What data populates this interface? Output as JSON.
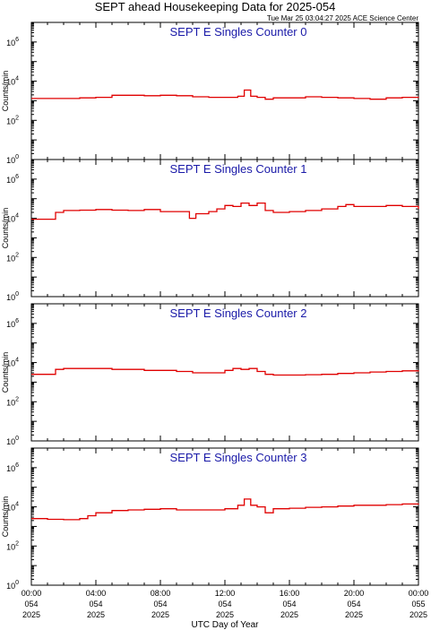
{
  "page": {
    "title": "SEPT ahead Housekeeping Data for 2025-054",
    "timestamp": "Tue Mar 25 03:04:27 2025 ACE Science Center",
    "xlabel": "UTC Day of Year"
  },
  "colors": {
    "trace": "#e00000",
    "panel_title": "#1a1aa8",
    "axes": "#000000",
    "background": "#ffffff"
  },
  "chart_data": [
    {
      "type": "line",
      "title": "SEPT E Singles Counter 0",
      "ylabel": "Counts/min",
      "yscale": "log",
      "ylim": [
        1,
        10000000
      ],
      "ytick_labels": [
        "10^0",
        "10^2",
        "10^4",
        "10^6"
      ],
      "xlim": [
        0,
        24
      ],
      "xtick_labels": [
        [
          "00:00",
          "054",
          "2025"
        ],
        [
          "04:00",
          "054",
          "2025"
        ],
        [
          "08:00",
          "054",
          "2025"
        ],
        [
          "12:00",
          "054",
          "2025"
        ],
        [
          "16:00",
          "054",
          "2025"
        ],
        [
          "20:00",
          "054",
          "2025"
        ],
        [
          "00:00",
          "055",
          "2025"
        ]
      ],
      "series": [
        {
          "x": [
            0.0,
            1.0,
            2.0,
            3.0,
            4.0,
            5.0,
            6.0,
            7.0,
            8.0,
            9.0,
            10.0,
            11.0,
            12.0,
            12.8,
            13.2,
            13.6,
            14.0,
            14.5,
            15.0,
            16.0,
            17.0,
            18.0,
            19.0,
            20.0,
            21.0,
            22.0,
            23.0,
            24.0
          ],
          "y": [
            1300,
            1300,
            1300,
            1400,
            1500,
            1900,
            1900,
            1800,
            1900,
            1800,
            1600,
            1500,
            1500,
            1700,
            3500,
            1700,
            1500,
            1200,
            1400,
            1400,
            1600,
            1500,
            1400,
            1300,
            1200,
            1400,
            1500,
            1600
          ]
        }
      ]
    },
    {
      "type": "line",
      "title": "SEPT E Singles Counter 1",
      "ylabel": "Counts/min",
      "yscale": "log",
      "ylim": [
        1,
        10000000
      ],
      "ytick_labels": [
        "10^0",
        "10^2",
        "10^4",
        "10^6"
      ],
      "xlim": [
        0,
        24
      ],
      "xtick_labels": [
        [
          "00:00",
          "054",
          "2025"
        ],
        [
          "04:00",
          "054",
          "2025"
        ],
        [
          "08:00",
          "054",
          "2025"
        ],
        [
          "12:00",
          "054",
          "2025"
        ],
        [
          "16:00",
          "054",
          "2025"
        ],
        [
          "20:00",
          "054",
          "2025"
        ],
        [
          "00:00",
          "055",
          "2025"
        ]
      ],
      "series": [
        {
          "x": [
            0.0,
            0.5,
            1.0,
            1.5,
            2.0,
            3.0,
            4.0,
            5.0,
            6.0,
            7.0,
            8.0,
            9.0,
            9.8,
            10.2,
            11.0,
            11.5,
            12.0,
            12.5,
            13.0,
            13.5,
            14.0,
            14.5,
            15.0,
            16.0,
            17.0,
            18.0,
            19.0,
            19.5,
            20.0,
            21.0,
            22.0,
            23.0,
            24.0
          ],
          "y": [
            9000,
            9000,
            9000,
            20000,
            25000,
            26000,
            28000,
            26000,
            25000,
            28000,
            22000,
            22000,
            10000,
            17000,
            22000,
            30000,
            45000,
            40000,
            60000,
            45000,
            60000,
            25000,
            20000,
            22000,
            25000,
            30000,
            40000,
            50000,
            40000,
            40000,
            45000,
            40000,
            30000
          ]
        }
      ]
    },
    {
      "type": "line",
      "title": "SEPT E Singles Counter 2",
      "ylabel": "Counts/min",
      "yscale": "log",
      "ylim": [
        1,
        10000000
      ],
      "ytick_labels": [
        "10^0",
        "10^2",
        "10^4",
        "10^6"
      ],
      "xlim": [
        0,
        24
      ],
      "xtick_labels": [
        [
          "00:00",
          "054",
          "2025"
        ],
        [
          "04:00",
          "054",
          "2025"
        ],
        [
          "08:00",
          "054",
          "2025"
        ],
        [
          "12:00",
          "054",
          "2025"
        ],
        [
          "16:00",
          "054",
          "2025"
        ],
        [
          "20:00",
          "054",
          "2025"
        ],
        [
          "00:00",
          "055",
          "2025"
        ]
      ],
      "series": [
        {
          "x": [
            0.0,
            1.0,
            1.5,
            2.0,
            3.0,
            4.0,
            5.0,
            6.0,
            7.0,
            8.0,
            9.0,
            10.0,
            11.0,
            12.0,
            12.5,
            13.0,
            13.5,
            14.0,
            14.5,
            15.0,
            16.0,
            17.0,
            18.0,
            19.0,
            20.0,
            21.0,
            22.0,
            23.0,
            24.0
          ],
          "y": [
            2500,
            2500,
            4500,
            5000,
            5000,
            5000,
            4500,
            4500,
            4000,
            4000,
            3500,
            3000,
            3000,
            4000,
            5000,
            4500,
            5000,
            3500,
            2500,
            2300,
            2300,
            2400,
            2500,
            2800,
            3000,
            3300,
            3500,
            3800,
            3500
          ]
        }
      ]
    },
    {
      "type": "line",
      "title": "SEPT E Singles Counter 3",
      "ylabel": "Counts/min",
      "yscale": "log",
      "ylim": [
        1,
        10000000
      ],
      "ytick_labels": [
        "10^0",
        "10^2",
        "10^4",
        "10^6"
      ],
      "xlim": [
        0,
        24
      ],
      "xtick_labels": [
        [
          "00:00",
          "054",
          "2025"
        ],
        [
          "04:00",
          "054",
          "2025"
        ],
        [
          "08:00",
          "054",
          "2025"
        ],
        [
          "12:00",
          "054",
          "2025"
        ],
        [
          "16:00",
          "054",
          "2025"
        ],
        [
          "20:00",
          "054",
          "2025"
        ],
        [
          "00:00",
          "055",
          "2025"
        ]
      ],
      "series": [
        {
          "x": [
            0.0,
            1.0,
            2.0,
            3.0,
            3.5,
            4.0,
            5.0,
            6.0,
            7.0,
            8.0,
            9.0,
            10.0,
            11.0,
            12.0,
            12.8,
            13.2,
            13.6,
            14.0,
            14.5,
            15.0,
            16.0,
            17.0,
            18.0,
            19.0,
            20.0,
            21.0,
            22.0,
            23.0,
            24.0
          ],
          "y": [
            2500,
            2300,
            2200,
            2500,
            3500,
            5000,
            6500,
            7000,
            7500,
            8000,
            7000,
            7000,
            7000,
            8000,
            12000,
            25000,
            12000,
            10000,
            5000,
            8000,
            8500,
            9500,
            10000,
            11000,
            12000,
            12000,
            13000,
            14000,
            13000
          ]
        }
      ]
    }
  ]
}
